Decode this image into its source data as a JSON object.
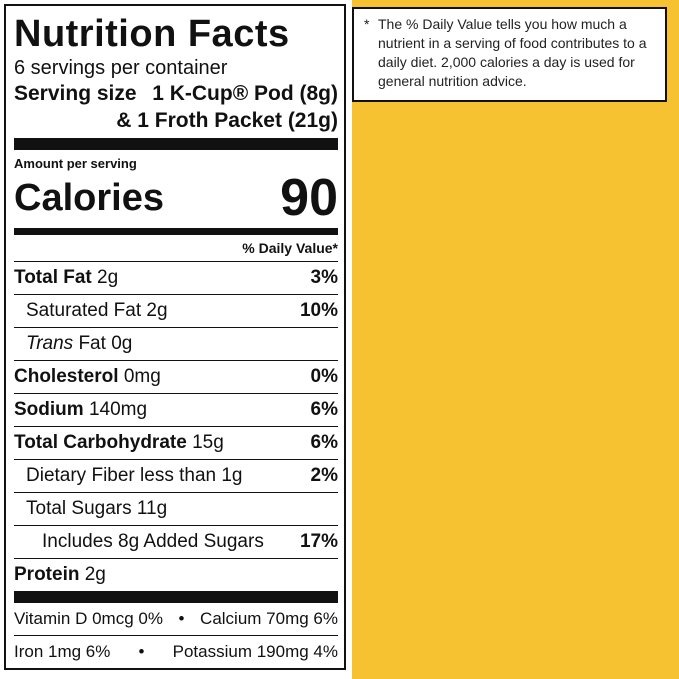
{
  "footnote": {
    "asterisk": "*",
    "text": "The % Daily Value tells you how much a nutrient in a serving of food contributes to a daily diet. 2,000 calories a day is used for general nutrition advice."
  },
  "label": {
    "title": "Nutrition Facts",
    "servings": "6 servings per container",
    "serving_size_label": "Serving size",
    "serving_size_value": "1 K-Cup® Pod (8g)",
    "serving_size_value2": "& 1 Froth Packet (21g)",
    "amount_per_serving": "Amount per serving",
    "calories_label": "Calories",
    "calories_value": "90",
    "dv_header": "% Daily Value*",
    "rows": [
      {
        "name": "Total Fat",
        "amount": "2g",
        "dv": "3%"
      },
      {
        "name": "Saturated Fat",
        "amount": "2g",
        "dv": "10%"
      },
      {
        "name": "Trans",
        "name_rest": "Fat",
        "amount": "0g",
        "dv": ""
      },
      {
        "name": "Cholesterol",
        "amount": "0mg",
        "dv": "0%"
      },
      {
        "name": "Sodium",
        "amount": "140mg",
        "dv": "6%"
      },
      {
        "name": "Total Carbohydrate",
        "amount": "15g",
        "dv": "6%"
      },
      {
        "name": "Dietary Fiber less than 1g",
        "amount": "",
        "dv": "2%"
      },
      {
        "name": "Total Sugars 11g",
        "amount": "",
        "dv": ""
      },
      {
        "name": "Includes 8g Added Sugars",
        "amount": "",
        "dv": "17%"
      },
      {
        "name": "Protein",
        "amount": "2g",
        "dv": ""
      }
    ],
    "vitamins": [
      {
        "left": "Vitamin D 0mcg 0%",
        "right": "Calcium 70mg 6%"
      },
      {
        "left": "Iron 1mg 6%",
        "right": "Potassium 190mg 4%"
      }
    ],
    "bullet": "•"
  }
}
